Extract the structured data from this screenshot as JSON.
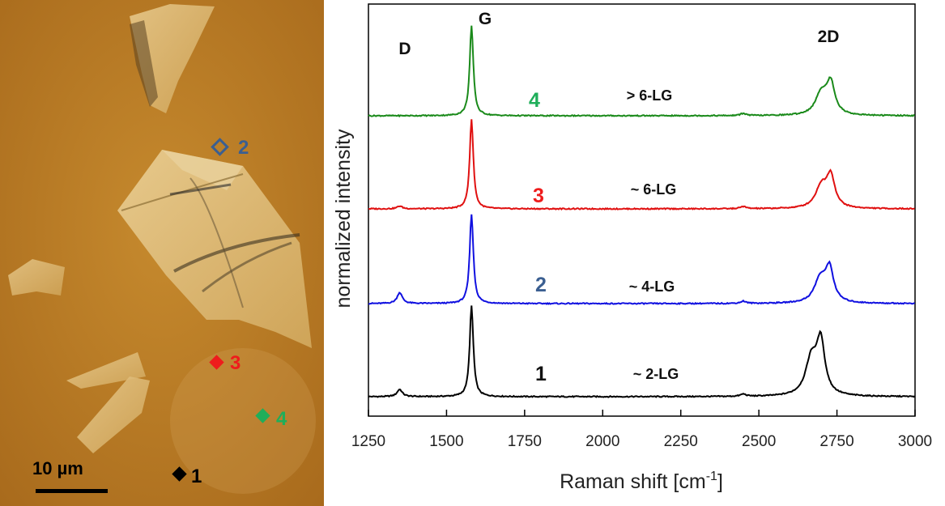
{
  "micrograph": {
    "scale_bar_label": "10 µm",
    "markers": [
      {
        "label": "1",
        "color": "#000000"
      },
      {
        "label": "2",
        "color": "#3b5f91"
      },
      {
        "label": "3",
        "color": "#ee1c1c"
      },
      {
        "label": "4",
        "color": "#1fae5a"
      }
    ]
  },
  "chart_data": {
    "type": "line",
    "xlabel": "Raman shift [cm",
    "xlabel_sup": "-1",
    "xlabel_close": "]",
    "ylabel": "normalized intensity",
    "xlim": [
      1250,
      3000
    ],
    "xticks": [
      1250,
      1500,
      1750,
      2000,
      2250,
      2500,
      2750,
      3000
    ],
    "y_ticks_shown": false,
    "peak_labels": [
      {
        "text": "D",
        "x": 1350
      },
      {
        "text": "G",
        "x": 1582
      },
      {
        "text": "2D",
        "x": 2700
      }
    ],
    "series": [
      {
        "spot": "1",
        "name": "~ 2-LG",
        "color": "#000000",
        "label_color": "#111111",
        "D": {
          "x": 1350,
          "h": 0.08
        },
        "G": {
          "x": 1580,
          "h": 1.0
        },
        "D2": {
          "x": 2690,
          "h": 0.88
        }
      },
      {
        "spot": "2",
        "name": "~ 4-LG",
        "color": "#1010e0",
        "label_color": "#3b5f91",
        "D": {
          "x": 1350,
          "h": 0.12
        },
        "G": {
          "x": 1580,
          "h": 0.98
        },
        "D2": {
          "x": 2718,
          "h": 0.56
        }
      },
      {
        "spot": "3",
        "name": "~ 6-LG",
        "color": "#e01010",
        "label_color": "#ee1c1c",
        "D": {
          "x": 1350,
          "h": 0.03
        },
        "G": {
          "x": 1580,
          "h": 0.98
        },
        "D2": {
          "x": 2722,
          "h": 0.52
        }
      },
      {
        "spot": "4",
        "name": "> 6-LG",
        "color": "#1a8a1a",
        "label_color": "#1fae5a",
        "D": {
          "x": 1350,
          "h": 0.0
        },
        "G": {
          "x": 1580,
          "h": 0.98
        },
        "D2": {
          "x": 2722,
          "h": 0.52
        }
      }
    ]
  }
}
